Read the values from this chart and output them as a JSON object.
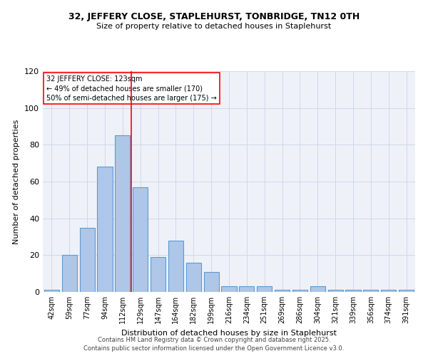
{
  "title1": "32, JEFFERY CLOSE, STAPLEHURST, TONBRIDGE, TN12 0TH",
  "title2": "Size of property relative to detached houses in Staplehurst",
  "xlabel": "Distribution of detached houses by size in Staplehurst",
  "ylabel": "Number of detached properties",
  "bar_labels": [
    "42sqm",
    "59sqm",
    "77sqm",
    "94sqm",
    "112sqm",
    "129sqm",
    "147sqm",
    "164sqm",
    "182sqm",
    "199sqm",
    "216sqm",
    "234sqm",
    "251sqm",
    "269sqm",
    "286sqm",
    "304sqm",
    "321sqm",
    "339sqm",
    "356sqm",
    "374sqm",
    "391sqm"
  ],
  "bar_values": [
    1,
    20,
    35,
    68,
    85,
    57,
    19,
    28,
    16,
    11,
    3,
    3,
    3,
    1,
    1,
    3,
    1,
    1,
    1,
    1,
    1
  ],
  "bar_color": "#aec6e8",
  "bar_edge_color": "#5b9bd5",
  "vline_x_idx": 4,
  "vline_color": "red",
  "annotation_text": "32 JEFFERY CLOSE: 123sqm\n← 49% of detached houses are smaller (170)\n50% of semi-detached houses are larger (175) →",
  "grid_color": "#d0d8e8",
  "bg_color": "#eef2f8",
  "ylim": [
    0,
    120
  ],
  "yticks": [
    0,
    20,
    40,
    60,
    80,
    100,
    120
  ],
  "footer1": "Contains HM Land Registry data © Crown copyright and database right 2025.",
  "footer2": "Contains public sector information licensed under the Open Government Licence v3.0."
}
